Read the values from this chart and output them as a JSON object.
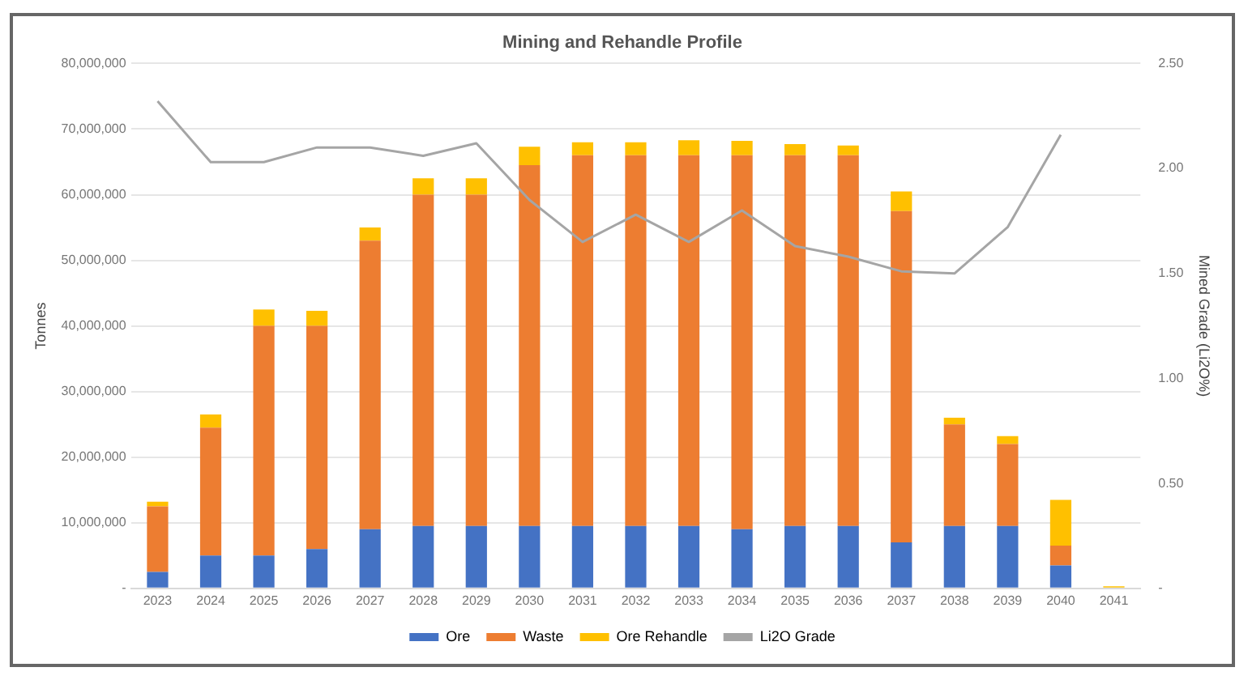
{
  "chart_data": {
    "type": "bar",
    "stacked": true,
    "title": "Mining and Rehandle Profile",
    "ylabel": "Tonnes",
    "y2label": "Mined Grade (Li2O%)",
    "categories": [
      "2023",
      "2024",
      "2025",
      "2026",
      "2027",
      "2028",
      "2029",
      "2030",
      "2031",
      "2032",
      "2033",
      "2034",
      "2035",
      "2036",
      "2037",
      "2038",
      "2039",
      "2040",
      "2041"
    ],
    "series": [
      {
        "name": "Ore",
        "color": "#4472c4",
        "values": [
          2500000,
          5000000,
          5000000,
          6000000,
          9000000,
          9500000,
          9500000,
          9500000,
          9500000,
          9500000,
          9500000,
          9000000,
          9500000,
          9500000,
          7000000,
          9500000,
          9500000,
          3500000,
          0
        ]
      },
      {
        "name": "Waste",
        "color": "#ed7d31",
        "values": [
          10000000,
          19500000,
          35000000,
          34000000,
          44000000,
          50500000,
          50500000,
          55000000,
          56500000,
          56500000,
          56500000,
          57000000,
          56500000,
          56500000,
          50500000,
          15500000,
          12500000,
          3000000,
          0
        ]
      },
      {
        "name": "Ore Rehandle",
        "color": "#ffc000",
        "values": [
          700000,
          2000000,
          2500000,
          2300000,
          2000000,
          2500000,
          2500000,
          2800000,
          2000000,
          2000000,
          2300000,
          2200000,
          1700000,
          1500000,
          3000000,
          1000000,
          1200000,
          7000000,
          300000
        ]
      },
      {
        "name": "Li2O Grade",
        "type": "line",
        "axis": "y2",
        "color": "#a5a5a5",
        "values": [
          2.32,
          2.03,
          2.03,
          2.1,
          2.1,
          2.06,
          2.12,
          1.85,
          1.65,
          1.78,
          1.65,
          1.8,
          1.63,
          1.58,
          1.51,
          1.5,
          1.72,
          2.16,
          null
        ]
      }
    ],
    "ylim": [
      0,
      80000000
    ],
    "yticks": [
      {
        "value": 0,
        "label": "-"
      },
      {
        "value": 10000000,
        "label": "10,000,000"
      },
      {
        "value": 20000000,
        "label": "20,000,000"
      },
      {
        "value": 30000000,
        "label": "30,000,000"
      },
      {
        "value": 40000000,
        "label": "40,000,000"
      },
      {
        "value": 50000000,
        "label": "50,000,000"
      },
      {
        "value": 60000000,
        "label": "60,000,000"
      },
      {
        "value": 70000000,
        "label": "70,000,000"
      },
      {
        "value": 80000000,
        "label": "80,000,000"
      }
    ],
    "y2lim": [
      0,
      2.5
    ],
    "y2ticks": [
      {
        "value": 0,
        "label": "-"
      },
      {
        "value": 0.5,
        "label": "0.50"
      },
      {
        "value": 1,
        "label": "1.00"
      },
      {
        "value": 1.5,
        "label": "1.50"
      },
      {
        "value": 2,
        "label": "2.00"
      },
      {
        "value": 2.5,
        "label": "2.50"
      }
    ],
    "grid": "y",
    "legend": "bottom",
    "marker": "none"
  }
}
